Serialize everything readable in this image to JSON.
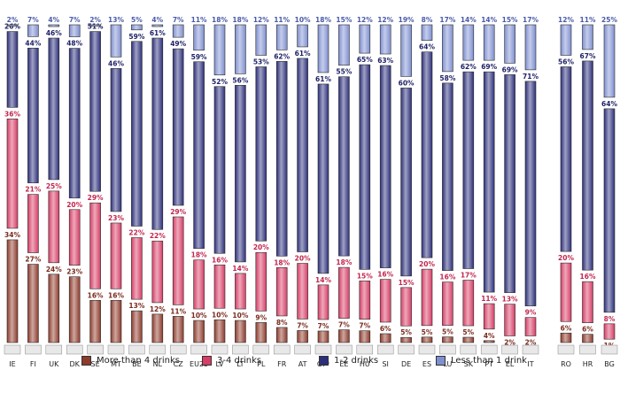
{
  "chart_data": {
    "type": "bar",
    "stacked": true,
    "normalized_to_100": true,
    "categories": [
      "IE",
      "FI",
      "UK",
      "DK",
      "SE",
      "MT",
      "BE",
      "NL",
      "CZ",
      "EU25",
      "LV",
      "LT",
      "PL",
      "FR",
      "AT",
      "CY*",
      "EE",
      "HU",
      "SI",
      "DE",
      "ES",
      "LU",
      "SK",
      "PT",
      "EL",
      "IT",
      "RO",
      "HR",
      "BG"
    ],
    "series": [
      {
        "name": "More than 4 drinks",
        "color": "#8e3b2c",
        "values": [
          34,
          27,
          24,
          23,
          16,
          16,
          13,
          12,
          11,
          10,
          10,
          10,
          9,
          8,
          7,
          7,
          7,
          7,
          6,
          5,
          5,
          5,
          5,
          4,
          2,
          2,
          6,
          6,
          1
        ]
      },
      {
        "name": "3-4 drinks",
        "color": "#d63e66",
        "values": [
          36,
          21,
          25,
          20,
          29,
          23,
          22,
          22,
          29,
          18,
          16,
          14,
          20,
          18,
          20,
          14,
          18,
          15,
          16,
          15,
          20,
          16,
          17,
          11,
          13,
          9,
          20,
          16,
          8
        ]
      },
      {
        "name": "1-2 drinks",
        "color": "#2c2f7a",
        "values": [
          26,
          44,
          46,
          48,
          51,
          46,
          59,
          61,
          49,
          59,
          52,
          56,
          53,
          62,
          61,
          61,
          55,
          65,
          63,
          60,
          64,
          58,
          62,
          69,
          69,
          71,
          56,
          67,
          64
        ]
      },
      {
        "name": "Less than 1 drink",
        "color": "#7f8fd0",
        "values": [
          2,
          7,
          4,
          7,
          2,
          13,
          5,
          4,
          7,
          11,
          18,
          18,
          12,
          11,
          10,
          18,
          15,
          12,
          12,
          19,
          8,
          17,
          14,
          14,
          15,
          17,
          12,
          11,
          25
        ]
      }
    ],
    "grid": false,
    "legend_position": "bottom",
    "title": "",
    "xlabel": "",
    "ylabel": ""
  },
  "flags": [
    "ireland-flag",
    "finland-flag",
    "uk-flag",
    "denmark-flag",
    "sweden-flag",
    "malta-flag",
    "belgium-flag",
    "netherlands-flag",
    "czech-republic-flag",
    "eu-flag",
    "latvia-flag",
    "lithuania-flag",
    "poland-flag",
    "france-flag",
    "austria-flag",
    "cyprus-flag",
    "estonia-flag",
    "hungary-flag",
    "slovenia-flag",
    "germany-flag",
    "spain-flag",
    "luxembourg-flag",
    "slovakia-flag",
    "portugal-flag",
    "greece-flag",
    "italy-flag",
    "romania-flag",
    "croatia-flag",
    "bulgaria-flag"
  ],
  "legend": {
    "items": [
      {
        "label": "More than 4 drinks",
        "color": "#8e3b2c"
      },
      {
        "label": "3-4 drinks",
        "color": "#d63e66"
      },
      {
        "label": "1-2 drinks",
        "color": "#2c2f7a"
      },
      {
        "label": "Less than 1 drink",
        "color": "#7f8fd0"
      }
    ]
  }
}
